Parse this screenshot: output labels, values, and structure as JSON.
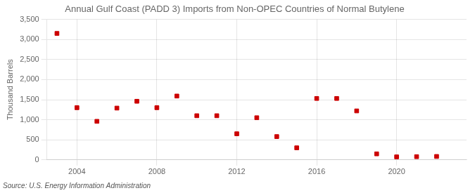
{
  "chart_data": {
    "type": "scatter",
    "title": "Annual Gulf Coast (PADD 3) Imports from Non-OPEC Countries of Normal Butylene",
    "ylabel": "Thousand Barrels",
    "annotations": [
      "Source: U.S. Energy Information Administration"
    ],
    "x": [
      2003,
      2004,
      2005,
      2006,
      2007,
      2008,
      2009,
      2010,
      2011,
      2012,
      2013,
      2014,
      2015,
      2016,
      2017,
      2018,
      2019,
      2020,
      2021,
      2022
    ],
    "values": [
      3150,
      1300,
      960,
      1290,
      1460,
      1300,
      1590,
      1100,
      1100,
      650,
      1050,
      580,
      300,
      1530,
      1530,
      1220,
      150,
      75,
      80,
      85
    ],
    "color": "#cc0000",
    "marker": "square",
    "xlim": [
      2002.5,
      2023.5
    ],
    "xticks": [
      2004,
      2008,
      2012,
      2016,
      2020
    ],
    "ylim": [
      0,
      3500
    ],
    "yticks": [
      0,
      500,
      {
        "value": 1000,
        "label": "1,000"
      },
      {
        "value": 1500,
        "label": "1,500"
      },
      {
        "value": 2000,
        "label": "2,000"
      },
      {
        "value": 2500,
        "label": "2,500"
      },
      {
        "value": 3000,
        "label": "3,000"
      },
      {
        "value": 3500,
        "label": "3,500"
      }
    ],
    "grid": true
  }
}
